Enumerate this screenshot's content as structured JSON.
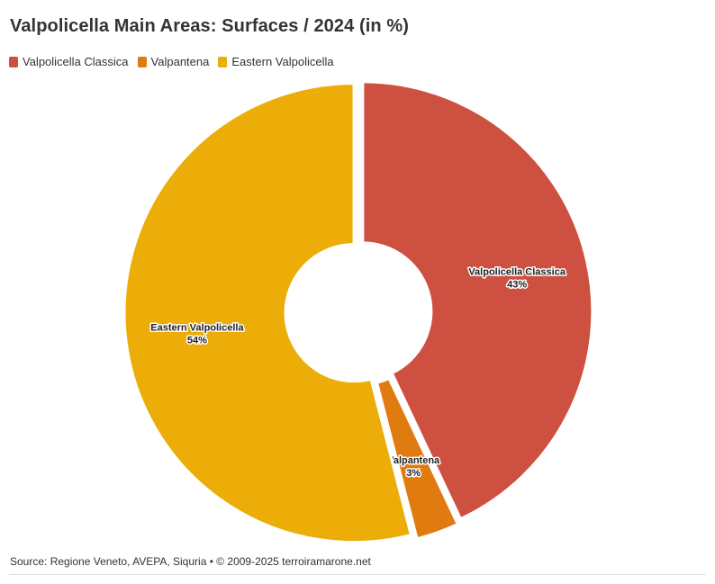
{
  "title": "Valpolicella Main Areas: Surfaces / 2024 (in %)",
  "source": "Source: Regione Veneto, AVEPA, Siquria • © 2009-2025 terroiramarone.net",
  "chart_data": {
    "type": "pie",
    "title": "Valpolicella Main Areas: Surfaces / 2024 (in %)",
    "donut": true,
    "legend_position": "top-left",
    "slices": [
      {
        "label": "Valpolicella Classica",
        "value": 43,
        "value_label": "43%",
        "color": "#cd5040"
      },
      {
        "label": "Valpantena",
        "value": 3,
        "value_label": "3%",
        "color": "#e07b10"
      },
      {
        "label": "Eastern Valpolicella",
        "value": 54,
        "value_label": "54%",
        "color": "#ecad08"
      }
    ]
  }
}
